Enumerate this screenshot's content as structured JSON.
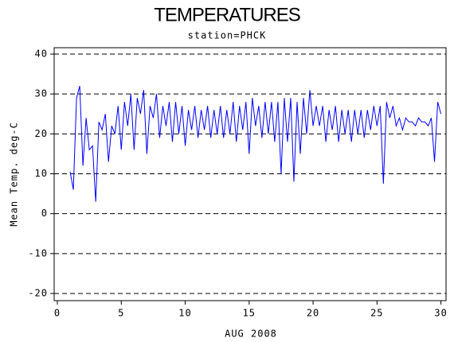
{
  "chart_data": {
    "type": "line",
    "title": "TEMPERATURES",
    "subtitle": "station=PHCK",
    "x_label": "AUG 2008",
    "y_label": "Mean Temp. deg-C",
    "x": [
      1,
      1.25,
      1.5,
      1.75,
      2,
      2.25,
      2.5,
      2.75,
      3,
      3.25,
      3.5,
      3.75,
      4,
      4.25,
      4.5,
      4.75,
      5,
      5.25,
      5.5,
      5.75,
      6,
      6.25,
      6.5,
      6.75,
      7,
      7.25,
      7.5,
      7.75,
      8,
      8.25,
      8.5,
      8.75,
      9,
      9.25,
      9.5,
      9.75,
      10,
      10.25,
      10.5,
      10.75,
      11,
      11.25,
      11.5,
      11.75,
      12,
      12.25,
      12.5,
      12.75,
      13,
      13.25,
      13.5,
      13.75,
      14,
      14.25,
      14.5,
      14.75,
      15,
      15.25,
      15.5,
      15.75,
      16,
      16.25,
      16.5,
      16.75,
      17,
      17.25,
      17.5,
      17.75,
      18,
      18.25,
      18.5,
      18.75,
      19,
      19.25,
      19.5,
      19.75,
      20,
      20.25,
      20.5,
      20.75,
      21,
      21.25,
      21.5,
      21.75,
      22,
      22.25,
      22.5,
      22.75,
      23,
      23.25,
      23.5,
      23.75,
      24,
      24.25,
      24.5,
      24.75,
      25,
      25.25,
      25.5,
      25.75,
      26,
      26.25,
      26.5,
      26.75,
      27,
      27.25,
      27.5,
      27.75,
      28,
      28.25,
      28.5,
      28.75,
      29,
      29.25,
      29.5,
      29.75,
      30
    ],
    "series": [
      {
        "name": "Mean Temp",
        "color": "#0000ff",
        "values": [
          10.5,
          6,
          29,
          32,
          12,
          24,
          16,
          17,
          3,
          23,
          21,
          25,
          13,
          22,
          20,
          27,
          16,
          28,
          22,
          30,
          16,
          29,
          25,
          31,
          15,
          27,
          24,
          30,
          19,
          27,
          22,
          28,
          18,
          28,
          20,
          27,
          17,
          26,
          21,
          27,
          19,
          26,
          21,
          27,
          19,
          26,
          20,
          27,
          19,
          26,
          20,
          28,
          18,
          27,
          21,
          28,
          15,
          29,
          22,
          27,
          19,
          28,
          20,
          28,
          18,
          28,
          10,
          29,
          18,
          29,
          8,
          28,
          15,
          29,
          20,
          31,
          22,
          27,
          22,
          27,
          18,
          26,
          21,
          27,
          18,
          26,
          20,
          26,
          18,
          26,
          20,
          26,
          19,
          26,
          21,
          27,
          22,
          27,
          7.5,
          28,
          24,
          27,
          22,
          24,
          21,
          24,
          23,
          23,
          22,
          24,
          23,
          23,
          22,
          24,
          13,
          28,
          25
        ]
      }
    ],
    "xlim": [
      -0.25,
      30.4
    ],
    "xticks": [
      0,
      5,
      10,
      15,
      20,
      25,
      30
    ],
    "ylim": [
      -21.8,
      41.6
    ],
    "yticks": [
      -20,
      -10,
      0,
      10,
      20,
      30,
      40
    ],
    "grid": true
  }
}
